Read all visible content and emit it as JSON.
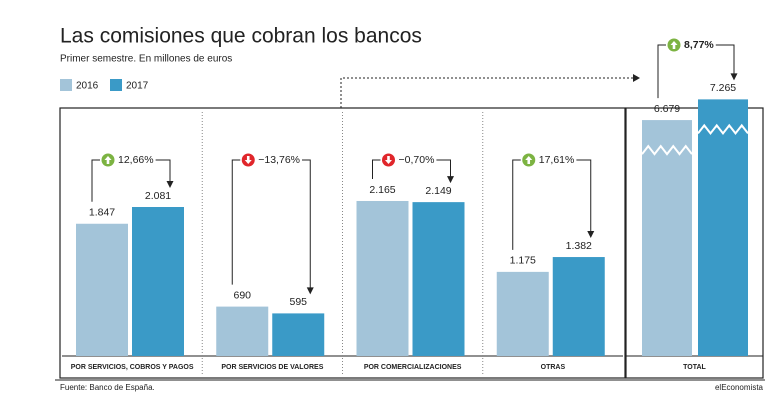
{
  "chart_data": [
    {
      "type": "bar",
      "title": "Las comisiones que cobran los bancos",
      "subtitle": "Primer semestre. En millones de euros",
      "source": "Fuente: Banco de España.",
      "brand": "elEconomista",
      "categories": [
        "POR SERVICIOS, COBROS Y PAGOS",
        "POR SERVICIOS DE VALORES",
        "POR COMERCIALIZACIONES",
        "OTRAS"
      ],
      "series": [
        {
          "name": "2016",
          "color": "#a3c4d9",
          "values": [
            1847,
            690,
            2165,
            1175
          ],
          "value_labels": [
            "1.847",
            "690",
            "2.165",
            "1.175"
          ]
        },
        {
          "name": "2017",
          "color": "#3a9ac7",
          "values": [
            2081,
            595,
            2149,
            1382
          ],
          "value_labels": [
            "2.081",
            "595",
            "2.149",
            "1.382"
          ]
        }
      ],
      "changes": [
        12.66,
        -13.76,
        -0.7,
        17.61
      ],
      "change_labels": [
        "12,66%",
        "−13,76%",
        "−0,70%",
        "17,61%"
      ],
      "ylim": [
        0,
        2500
      ]
    },
    {
      "type": "bar",
      "categories": [
        "TOTAL"
      ],
      "series": [
        {
          "name": "2016",
          "color": "#a3c4d9",
          "values": [
            6679
          ],
          "value_labels": [
            "6.679"
          ]
        },
        {
          "name": "2017",
          "color": "#3a9ac7",
          "values": [
            7265
          ],
          "value_labels": [
            "7.265"
          ]
        }
      ],
      "changes": [
        8.77
      ],
      "change_labels": [
        "8,77%"
      ],
      "ylim": [
        0,
        7500
      ],
      "axis_break": true
    }
  ]
}
